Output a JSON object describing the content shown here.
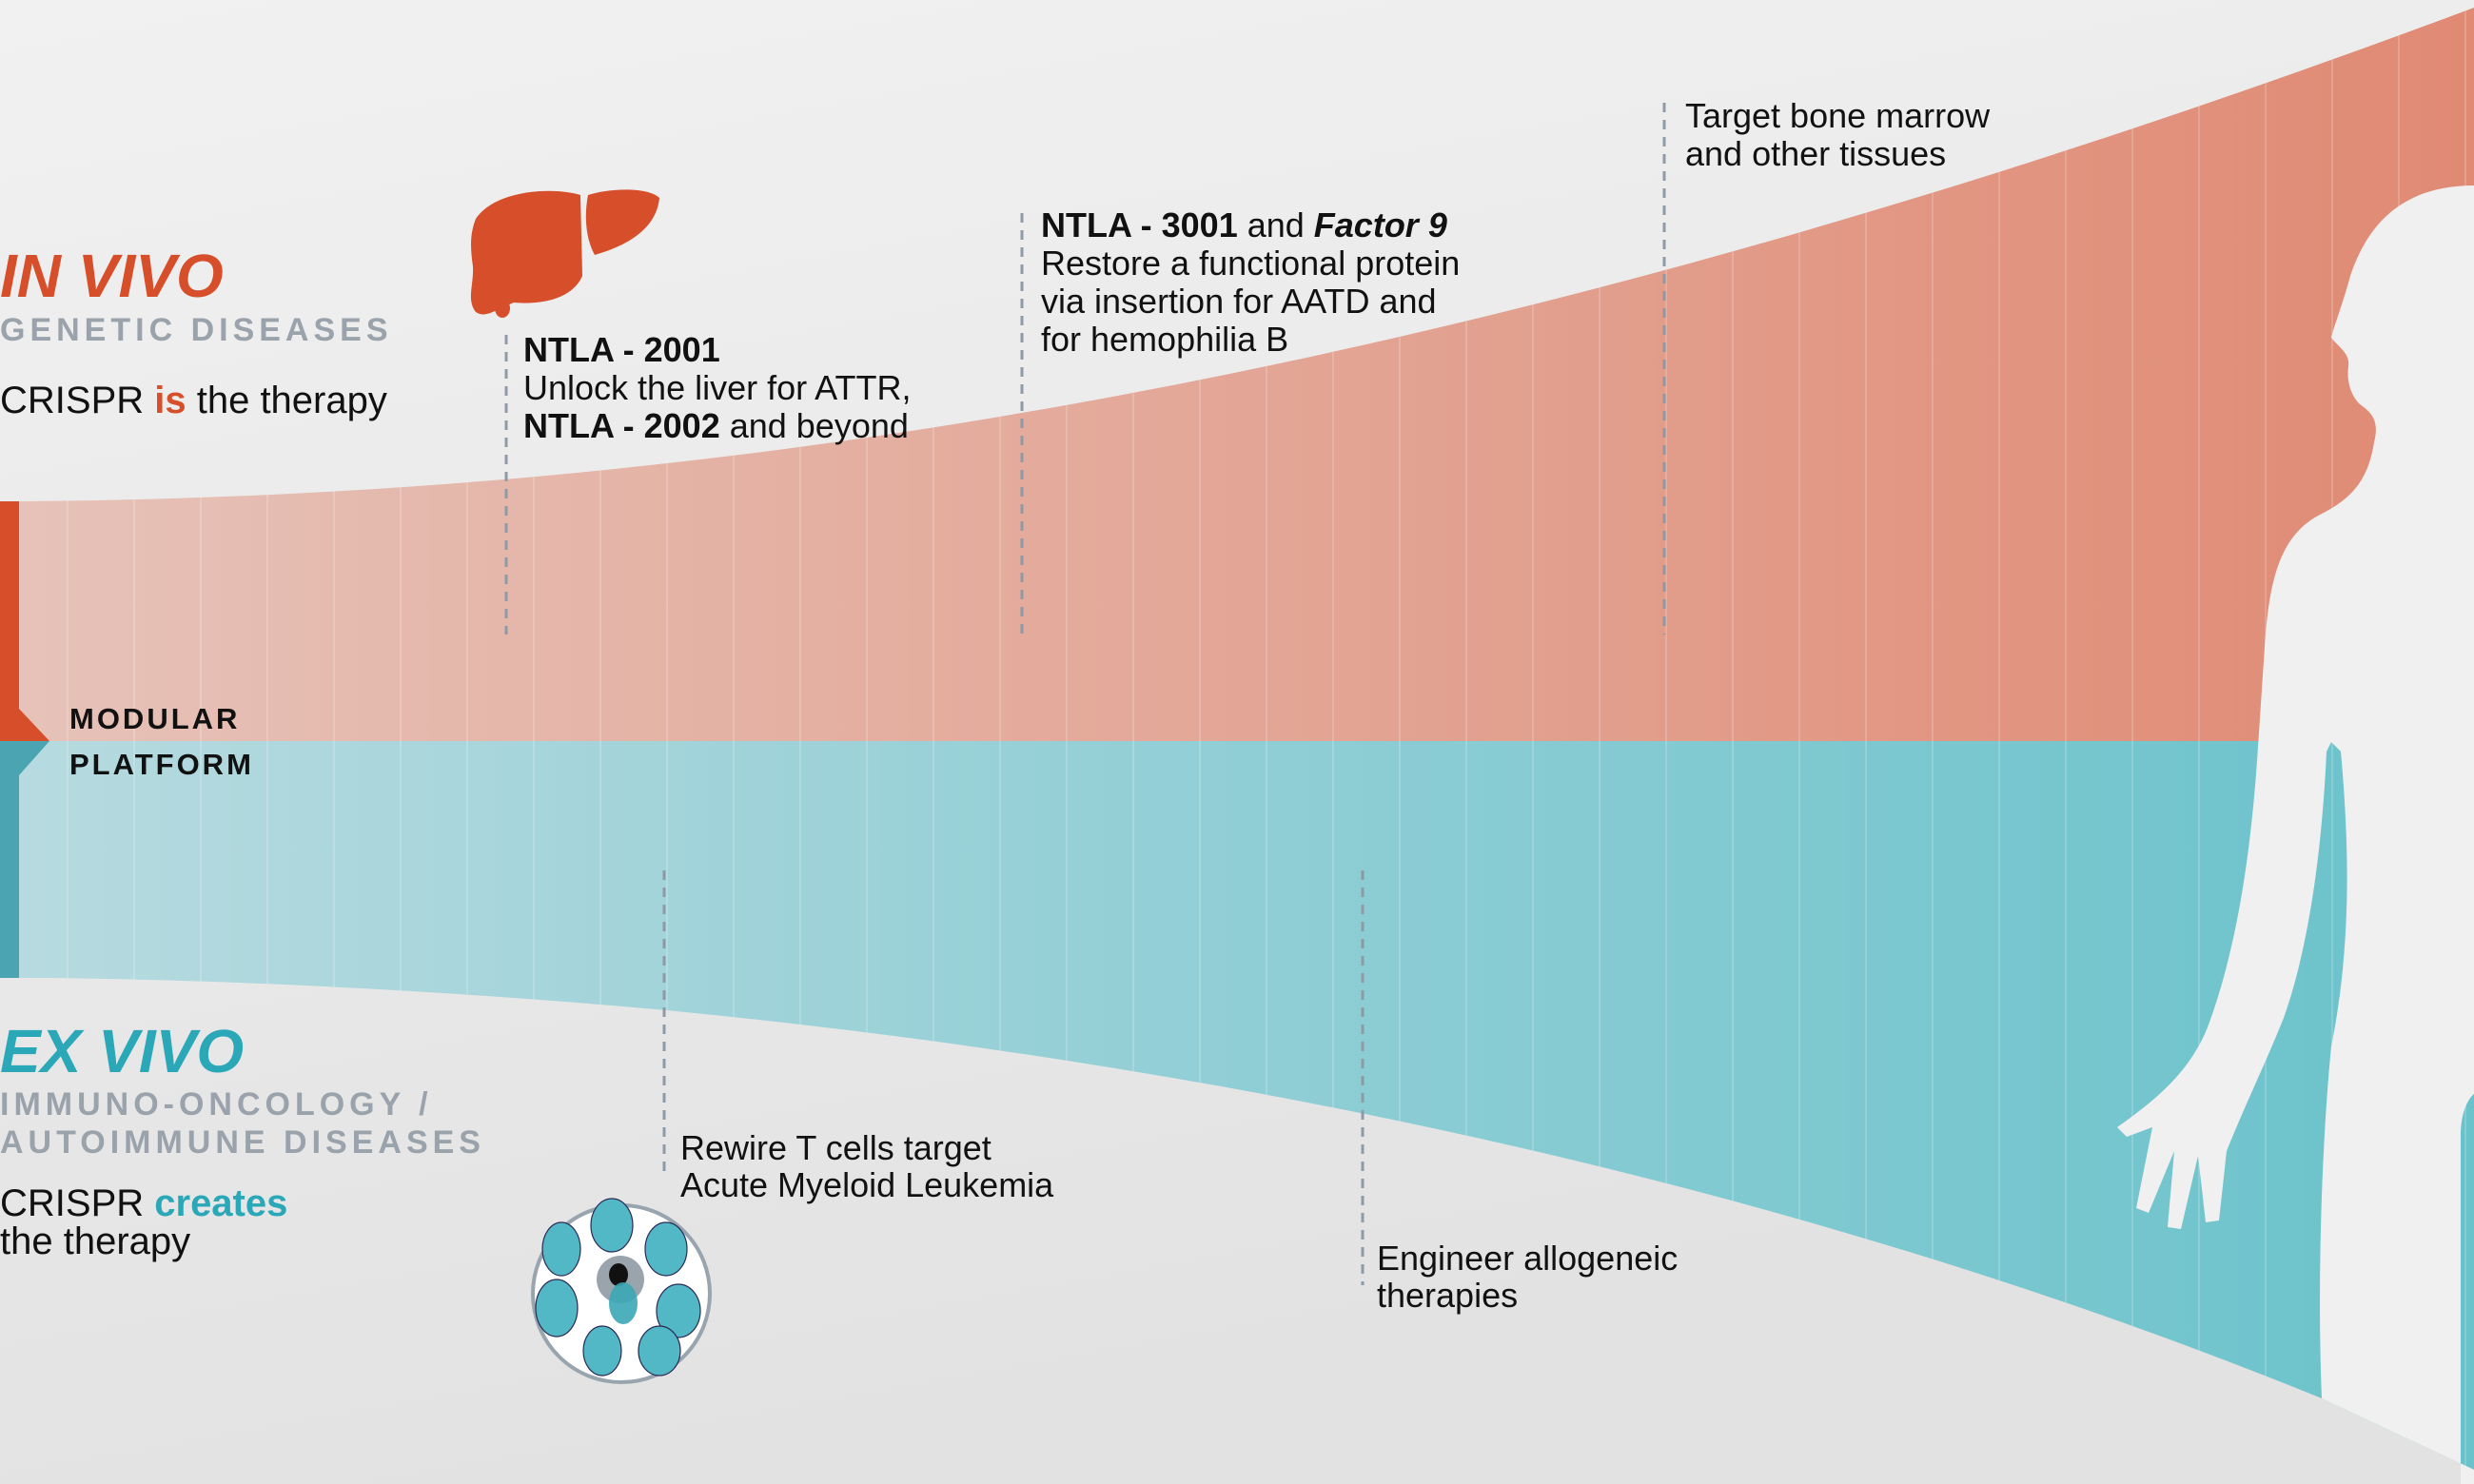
{
  "colors": {
    "in_vivo": "#d64f2a",
    "ex_vivo": "#2aa8b8",
    "subtitle_gray": "#9aa3ab",
    "red_band_light": "#e6c2b8",
    "red_band_dark": "#e08a74",
    "teal_band_light": "#b6dadf",
    "teal_band_dark": "#6ac2cb",
    "silhouette": "#f0f0f0"
  },
  "in_vivo": {
    "title": "IN VIVO",
    "subtitle": "GENETIC DISEASES",
    "tagline": {
      "pre": "CRISPR ",
      "accent": "is",
      "post": " the therapy"
    },
    "icon": "liver-icon"
  },
  "platform": {
    "line1": "MODULAR",
    "line2": "PLATFORM"
  },
  "ex_vivo": {
    "title": "EX VIVO",
    "subtitle_line1": "IMMUNO-ONCOLOGY /",
    "subtitle_line2": "AUTOIMMUNE DISEASES",
    "tagline": {
      "pre": "CRISPR ",
      "accent": "creates",
      "line2": "the therapy"
    },
    "icon": "t-cell-cluster-icon"
  },
  "milestones": {
    "ntla2001": {
      "title": "NTLA - 2001",
      "line2": "Unlock the liver for ATTR,",
      "line3_bold": "NTLA - 2002",
      "line3_rest": " and beyond"
    },
    "ntla3001": {
      "title_bold": "NTLA - 3001",
      "title_mid": " and ",
      "title_italic": "Factor 9",
      "line2": "Restore a functional protein",
      "line3": "via insertion for AATD and",
      "line4": "for hemophilia B"
    },
    "bone_marrow": {
      "line1": "Target bone marrow",
      "line2": "and other tissues"
    },
    "t_cells": {
      "line1": "Rewire T cells target",
      "line2": "Acute Myeloid Leukemia"
    },
    "allogeneic": {
      "line1": "Engineer allogeneic",
      "line2": "therapies"
    }
  },
  "figure": "human-silhouette-icon"
}
